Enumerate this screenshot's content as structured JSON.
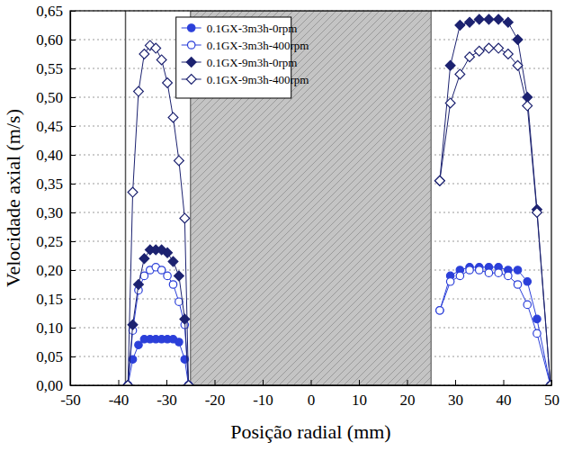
{
  "chart_data": {
    "type": "line",
    "x_label": "Posição radial (mm)",
    "y_label": "Velocidade axial (m/s)",
    "x": [
      -38,
      -37,
      -35.8,
      -34.6,
      -33.4,
      -32.2,
      -31,
      -29.8,
      -28.6,
      -27.4,
      -26.2,
      -25.4,
      0,
      26.8,
      29,
      31,
      33,
      35,
      37,
      39,
      41,
      43,
      45,
      47,
      49.8
    ],
    "series": [
      {
        "name": "0.1GX-3m3h-0rpm",
        "color": "#2b3fd9",
        "marker": "circle",
        "values": [
          0,
          0.045,
          0.07,
          0.08,
          0.08,
          0.08,
          0.08,
          0.08,
          0.08,
          0.075,
          0.045,
          0,
          null,
          0.13,
          0.19,
          0.2,
          0.205,
          0.205,
          0.205,
          0.205,
          0.2,
          0.2,
          0.18,
          0.115,
          0
        ]
      },
      {
        "name": "0.1GX-3m3h-400rpm",
        "color": "#2b3fd9",
        "marker": "circle-open",
        "values": [
          0,
          0.095,
          0.165,
          0.19,
          0.2,
          0.205,
          0.2,
          0.19,
          0.175,
          0.145,
          0.105,
          0,
          null,
          0.13,
          0.18,
          0.19,
          0.2,
          0.2,
          0.195,
          0.195,
          0.19,
          0.175,
          0.14,
          0.09,
          0
        ]
      },
      {
        "name": "0.1GX-9m3h-0rpm",
        "color": "#1c2270",
        "marker": "diamond",
        "values": [
          0,
          0.105,
          0.175,
          0.22,
          0.235,
          0.235,
          0.235,
          0.23,
          0.215,
          0.19,
          0.115,
          0,
          null,
          0.355,
          0.555,
          0.625,
          0.63,
          0.635,
          0.635,
          0.635,
          0.63,
          0.6,
          0.5,
          0.305,
          0
        ]
      },
      {
        "name": "0.1GX-9m3h-400rpm",
        "color": "#1c2270",
        "marker": "diamond-open",
        "values": [
          0,
          0.335,
          0.51,
          0.575,
          0.59,
          0.585,
          0.565,
          0.525,
          0.465,
          0.39,
          0.29,
          0,
          null,
          0.355,
          0.49,
          0.54,
          0.57,
          0.58,
          0.585,
          0.585,
          0.575,
          0.555,
          0.485,
          0.3,
          0
        ]
      }
    ],
    "xlim": [
      -50,
      50
    ],
    "xticks": [
      -50,
      -40,
      -30,
      -20,
      -10,
      0,
      10,
      20,
      30,
      40,
      50
    ],
    "ylim": [
      0,
      0.65
    ],
    "yticks": [
      {
        "value": 0,
        "label": "0,00"
      },
      {
        "value": 0.05,
        "label": "0,05"
      },
      {
        "value": 0.1,
        "label": "0,10"
      },
      {
        "value": 0.15,
        "label": "0,15"
      },
      {
        "value": 0.2,
        "label": "0,20"
      },
      {
        "value": 0.25,
        "label": "0,25"
      },
      {
        "value": 0.3,
        "label": "0,30"
      },
      {
        "value": 0.35,
        "label": "0,35"
      },
      {
        "value": 0.4,
        "label": "0,40"
      },
      {
        "value": 0.45,
        "label": "0,45"
      },
      {
        "value": 0.5,
        "label": "0,50"
      },
      {
        "value": 0.55,
        "label": "0,55"
      },
      {
        "value": 0.6,
        "label": "0,60"
      },
      {
        "value": 0.65,
        "label": "0,65"
      }
    ],
    "shaded_x": [
      -25,
      25
    ],
    "vline_x": -38.5,
    "grid": true,
    "legend": "top"
  }
}
